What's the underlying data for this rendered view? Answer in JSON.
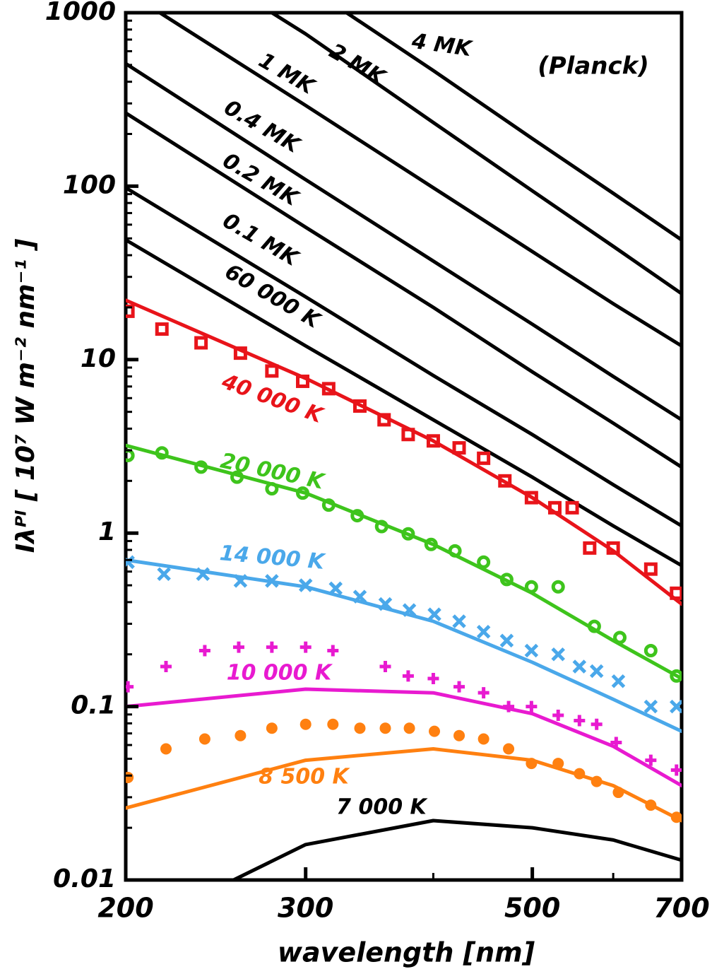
{
  "chart_data": {
    "type": "line",
    "annotation": "(Planck)",
    "xlabel": "wavelength  [nm]",
    "ylabel": "Iλᴾˡ  [ 10⁷ W m⁻² nm⁻¹ ]",
    "xscale": "log",
    "yscale": "log",
    "xlim": [
      200,
      700
    ],
    "ylim": [
      0.01,
      1000
    ],
    "xticks": [
      200,
      300,
      500,
      700
    ],
    "xminorticks": [
      400,
      600
    ],
    "yticks": [
      0.01,
      0.1,
      1,
      10,
      100,
      1000
    ],
    "yminorticks": [
      0.02,
      0.03,
      0.04,
      0.05,
      0.06,
      0.07,
      0.08,
      0.09,
      0.2,
      0.3,
      0.4,
      0.5,
      0.6,
      0.7,
      0.8,
      0.9,
      2,
      3,
      4,
      5,
      6,
      7,
      8,
      9,
      20,
      30,
      40,
      50,
      60,
      70,
      80,
      90,
      200,
      300,
      400,
      500,
      600,
      700,
      800,
      900
    ],
    "series": [
      {
        "name": "4 MK",
        "color": "#000000",
        "x": [
          329,
          400,
          500,
          600,
          700
        ],
        "values": [
          1000,
          464,
          188,
          91,
          49
        ]
      },
      {
        "name": "2 MK",
        "color": "#000000",
        "x": [
          278,
          300,
          400,
          500,
          600,
          700
        ],
        "values": [
          1000,
          755,
          233,
          94,
          45,
          24
        ]
      },
      {
        "name": "1 MK",
        "color": "#000000",
        "x": [
          216,
          300,
          400,
          500,
          600,
          700
        ],
        "values": [
          1000,
          292,
          98,
          42,
          21,
          12
        ]
      },
      {
        "name": "0.4 MK",
        "color": "#000000",
        "x": [
          200,
          300,
          400,
          500,
          600,
          700
        ],
        "values": [
          509,
          109,
          37,
          16,
          8,
          4.5
        ]
      },
      {
        "name": "0.2 MK",
        "color": "#000000",
        "x": [
          200,
          300,
          400,
          500,
          600,
          700
        ],
        "values": [
          264,
          58,
          20,
          8.5,
          4.3,
          2.4
        ]
      },
      {
        "name": "0.1 MK",
        "color": "#000000",
        "x": [
          200,
          300,
          400,
          500,
          600,
          700
        ],
        "values": [
          98,
          23,
          8.1,
          3.7,
          1.9,
          1.1
        ]
      },
      {
        "name": "60 000 K",
        "color": "#000000",
        "x": [
          200,
          300,
          400,
          500,
          600,
          700
        ],
        "values": [
          49,
          12,
          4.5,
          2.1,
          1.1,
          0.65
        ]
      },
      {
        "name": "40 000 K",
        "color": "#e8141a",
        "x": [
          200,
          300,
          400,
          500,
          600,
          700
        ],
        "values": [
          22,
          7.8,
          3.4,
          1.6,
          0.79,
          0.39
        ]
      },
      {
        "name": "20 000 K",
        "color": "#3ec41c",
        "x": [
          200,
          300,
          400,
          500,
          600,
          700
        ],
        "values": [
          3.2,
          1.7,
          0.86,
          0.45,
          0.24,
          0.145
        ]
      },
      {
        "name": "14 000 K",
        "color": "#4aa8ea",
        "x": [
          200,
          300,
          400,
          500,
          600,
          700
        ],
        "values": [
          0.7,
          0.49,
          0.31,
          0.18,
          0.11,
          0.072
        ]
      },
      {
        "name": "10 000 K",
        "color": "#e81ad0",
        "x": [
          200,
          300,
          400,
          500,
          600,
          700
        ],
        "values": [
          0.1,
          0.126,
          0.12,
          0.091,
          0.059,
          0.035
        ]
      },
      {
        "name": "8 500 K",
        "color": "#ff8010",
        "x": [
          200,
          300,
          400,
          500,
          600,
          700
        ],
        "values": [
          0.026,
          0.049,
          0.057,
          0.049,
          0.035,
          0.022
        ]
      },
      {
        "name": "7 000 K",
        "color": "#000000",
        "x": [
          255,
          300,
          400,
          500,
          600,
          700
        ],
        "values": [
          0.01,
          0.016,
          0.022,
          0.02,
          0.017,
          0.013
        ]
      },
      {
        "type": "scatter",
        "marker": "square",
        "color": "#e8141a",
        "x": [
          201,
          217,
          237,
          259,
          278,
          298,
          316,
          339,
          358,
          378,
          400,
          424,
          448,
          470,
          499,
          526,
          547,
          569,
          600,
          653,
          692
        ],
        "values": [
          19,
          15,
          12.5,
          10.9,
          8.6,
          7.5,
          6.8,
          5.4,
          4.5,
          3.7,
          3.4,
          3.1,
          2.7,
          2.0,
          1.6,
          1.4,
          1.4,
          0.82,
          0.82,
          0.62,
          0.45
        ]
      },
      {
        "type": "scatter",
        "marker": "circle",
        "color": "#3ec41c",
        "x": [
          201,
          217,
          237,
          257,
          278,
          298,
          316,
          337,
          356,
          378,
          398,
          420,
          448,
          472,
          499,
          530,
          575,
          609,
          653,
          692
        ],
        "values": [
          2.8,
          2.9,
          2.4,
          2.1,
          1.8,
          1.7,
          1.45,
          1.26,
          1.09,
          0.99,
          0.86,
          0.79,
          0.68,
          0.54,
          0.49,
          0.49,
          0.29,
          0.25,
          0.21,
          0.15
        ]
      },
      {
        "type": "scatter",
        "marker": "cross",
        "color": "#4aa8ea",
        "x": [
          201,
          218,
          238,
          259,
          278,
          300,
          321,
          339,
          359,
          379,
          401,
          424,
          448,
          472,
          499,
          530,
          556,
          578,
          607,
          653,
          692
        ],
        "values": [
          0.68,
          0.58,
          0.58,
          0.53,
          0.53,
          0.5,
          0.48,
          0.43,
          0.39,
          0.36,
          0.34,
          0.31,
          0.27,
          0.24,
          0.21,
          0.2,
          0.17,
          0.16,
          0.14,
          0.1,
          0.1
        ]
      },
      {
        "type": "scatter",
        "marker": "plus",
        "color": "#e81ad0",
        "x": [
          201,
          219,
          239,
          258,
          278,
          300,
          319,
          359,
          378,
          400,
          424,
          448,
          474,
          499,
          530,
          556,
          578,
          604,
          653,
          692
        ],
        "values": [
          0.13,
          0.17,
          0.21,
          0.22,
          0.22,
          0.22,
          0.21,
          0.17,
          0.15,
          0.145,
          0.13,
          0.12,
          0.1,
          0.1,
          0.089,
          0.083,
          0.079,
          0.062,
          0.049,
          0.043
        ]
      },
      {
        "type": "scatter",
        "marker": "dot",
        "color": "#ff8010",
        "x": [
          201,
          219,
          239,
          259,
          278,
          300,
          319,
          339,
          359,
          379,
          401,
          424,
          448,
          474,
          499,
          530,
          556,
          578,
          607,
          653,
          692
        ],
        "values": [
          0.039,
          0.057,
          0.065,
          0.068,
          0.075,
          0.079,
          0.079,
          0.075,
          0.075,
          0.075,
          0.072,
          0.068,
          0.065,
          0.057,
          0.047,
          0.047,
          0.041,
          0.037,
          0.032,
          0.027,
          0.023
        ]
      }
    ]
  }
}
